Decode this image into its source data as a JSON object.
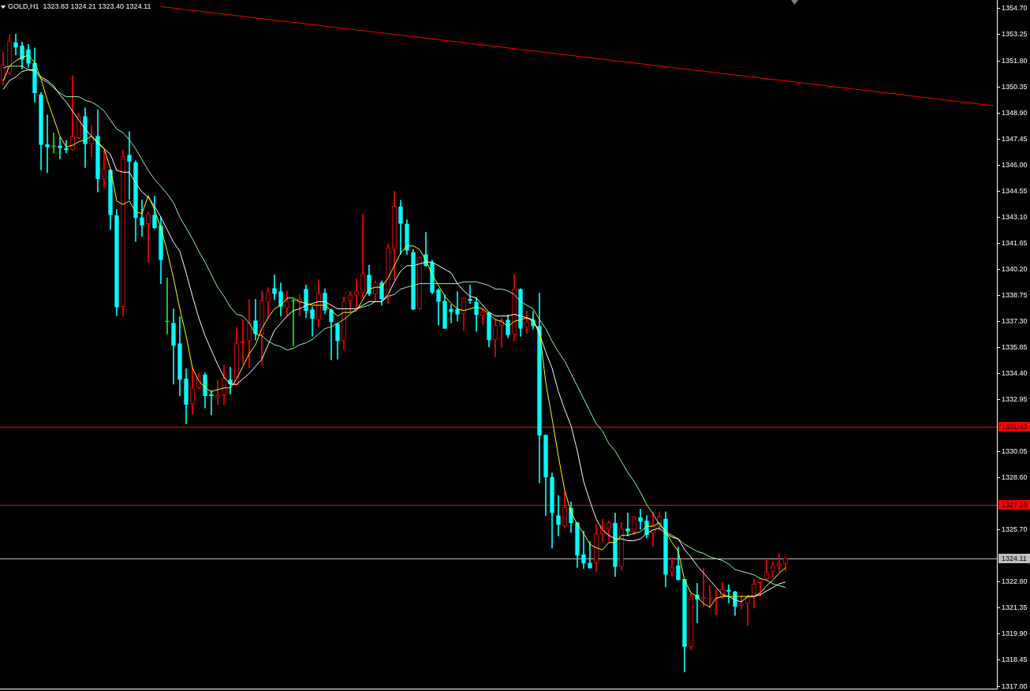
{
  "chart_data": {
    "type": "candlestick",
    "title": "GOLD,H1  1323.83 1324.21 1323.40 1324.11",
    "categories": [
      null,
      null,
      null,
      null,
      null,
      null,
      null,
      null,
      null,
      null,
      null,
      null,
      null,
      null,
      null,
      null,
      null,
      null,
      null,
      null,
      null,
      null,
      null,
      null,
      null,
      null,
      null,
      null,
      null,
      null,
      null,
      null,
      null,
      null,
      null,
      null,
      null,
      null,
      null,
      null,
      null,
      null,
      null,
      null,
      null,
      null,
      null,
      null,
      null,
      null,
      null,
      null,
      null,
      null,
      null,
      null,
      null,
      null,
      null,
      null,
      null,
      null,
      null,
      null,
      null,
      null,
      null,
      null,
      null,
      null,
      null,
      null,
      null,
      null,
      null,
      null,
      null,
      null,
      null,
      null,
      null,
      null,
      null,
      null,
      null,
      null,
      null,
      null,
      null,
      null,
      null,
      null,
      null,
      null,
      null,
      null,
      null,
      null,
      null,
      null,
      null,
      null,
      null,
      null,
      null,
      null,
      null,
      null,
      null,
      null,
      null,
      null,
      null,
      null,
      null,
      null,
      null,
      null,
      null,
      null,
      null,
      null,
      null,
      null,
      null,
      null,
      null,
      null,
      null,
      null,
      null,
      null,
      null,
      null,
      null,
      null,
      null,
      null,
      null,
      null,
      null,
      null,
      null,
      null,
      null,
      null,
      null,
      null,
      null,
      null,
      null,
      null,
      null,
      null,
      null,
      null,
      null,
      null
    ],
    "ohlc": [
      [
        1350.72,
        1352.29,
        1350.46,
        1351.57
      ],
      [
        1351.14,
        1353.26,
        1351.05,
        1352.89
      ],
      [
        1352.82,
        1353.28,
        1352.12,
        1352.55
      ],
      [
        1352.64,
        1352.85,
        1351.34,
        1351.87
      ],
      [
        1352.42,
        1352.71,
        1351.43,
        1351.65
      ],
      [
        1351.68,
        1352.51,
        1349.5,
        1350.0
      ],
      [
        1349.92,
        1350.03,
        1345.73,
        1347.13
      ],
      [
        1347.15,
        1348.78,
        1345.57,
        1347.0
      ],
      [
        1347.04,
        1347.78,
        1346.67,
        1347.04
      ],
      [
        1347.07,
        1347.54,
        1346.34,
        1346.96
      ],
      [
        1346.94,
        1347.37,
        1346.67,
        1346.83
      ],
      [
        1346.84,
        1350.98,
        1346.8,
        1347.6
      ],
      [
        1347.51,
        1348.87,
        1347.45,
        1348.68
      ],
      [
        1348.7,
        1349.18,
        1345.86,
        1347.18
      ],
      [
        1347.18,
        1348.21,
        1346.46,
        1347.59
      ],
      [
        1347.61,
        1349.09,
        1344.5,
        1345.23
      ],
      [
        1345.2,
        1346.85,
        1344.71,
        1345.76
      ],
      [
        1345.72,
        1345.76,
        1342.4,
        1343.22
      ],
      [
        1343.19,
        1343.52,
        1337.62,
        1338.09
      ],
      [
        1338.12,
        1346.83,
        1337.58,
        1346.49
      ],
      [
        1346.55,
        1347.86,
        1344.09,
        1346.2
      ],
      [
        1346.15,
        1346.24,
        1341.74,
        1343.06
      ],
      [
        1343.08,
        1344.05,
        1342.03,
        1342.66
      ],
      [
        1342.72,
        1343.39,
        1340.6,
        1343.25
      ],
      [
        1343.22,
        1344.27,
        1342.45,
        1342.51
      ],
      [
        1342.62,
        1343.1,
        1339.4,
        1340.72
      ],
      [
        1337.28,
        1339.72,
        1336.6,
        1337.28
      ],
      [
        1337.21,
        1338.0,
        1333.81,
        1335.95
      ],
      [
        1336.07,
        1337.56,
        1333.15,
        1334.07
      ],
      [
        1334.1,
        1334.67,
        1331.61,
        1332.67
      ],
      [
        1332.72,
        1334.75,
        1332.14,
        1333.6
      ],
      [
        1333.59,
        1334.43,
        1333.55,
        1334.26
      ],
      [
        1334.32,
        1334.43,
        1332.49,
        1333.15
      ],
      [
        1333.24,
        1333.45,
        1332.1,
        1333.15
      ],
      [
        1333.07,
        1334.02,
        1332.68,
        1333.18
      ],
      [
        1333.21,
        1334.87,
        1332.68,
        1334.14
      ],
      [
        1334.05,
        1334.75,
        1333.26,
        1333.81
      ],
      [
        1333.78,
        1336.98,
        1333.73,
        1336.1
      ],
      [
        1336.1,
        1337.39,
        1334.97,
        1336.19
      ],
      [
        1336.22,
        1338.5,
        1334.7,
        1337.21
      ],
      [
        1337.34,
        1338.53,
        1336.26,
        1336.63
      ],
      [
        1336.58,
        1338.99,
        1334.87,
        1338.46
      ],
      [
        1338.38,
        1339.18,
        1337.5,
        1338.95
      ],
      [
        1339.14,
        1339.88,
        1338.52,
        1338.84
      ],
      [
        1338.96,
        1339.44,
        1337.6,
        1338.14
      ],
      [
        1338.05,
        1338.99,
        1337.62,
        1338.42
      ],
      [
        1338.42,
        1338.52,
        1335.94,
        1338.42
      ],
      [
        1338.35,
        1338.79,
        1337.6,
        1338.55
      ],
      [
        1339.09,
        1339.33,
        1337.5,
        1337.91
      ],
      [
        1337.95,
        1338.11,
        1336.48,
        1337.47
      ],
      [
        1337.4,
        1339.62,
        1336.99,
        1338.86
      ],
      [
        1338.87,
        1339.11,
        1337.72,
        1337.92
      ],
      [
        1337.92,
        1338.01,
        1335.16,
        1337.27
      ],
      [
        1337.16,
        1337.21,
        1335.19,
        1336.21
      ],
      [
        1336.21,
        1338.67,
        1335.75,
        1338.42
      ],
      [
        1338.46,
        1338.96,
        1337.79,
        1338.77
      ],
      [
        1338.76,
        1339.66,
        1338.01,
        1338.99
      ],
      [
        1338.89,
        1343.26,
        1338.6,
        1339.95
      ],
      [
        1339.88,
        1340.42,
        1338.74,
        1338.84
      ],
      [
        1338.81,
        1339.55,
        1338.45,
        1339.44
      ],
      [
        1339.44,
        1339.55,
        1338.19,
        1338.54
      ],
      [
        1338.6,
        1341.62,
        1338.3,
        1341.4
      ],
      [
        1341.31,
        1344.53,
        1339.62,
        1343.72
      ],
      [
        1343.69,
        1344.04,
        1341.03,
        1342.74
      ],
      [
        1342.73,
        1342.95,
        1341.03,
        1341.25
      ],
      [
        1341.15,
        1341.3,
        1337.94,
        1337.97
      ],
      [
        1338.01,
        1340.89,
        1337.97,
        1340.87
      ],
      [
        1341.02,
        1342.25,
        1340.36,
        1340.39
      ],
      [
        1340.55,
        1340.71,
        1338.84,
        1338.92
      ],
      [
        1339.05,
        1339.13,
        1337.09,
        1338.4
      ],
      [
        1338.43,
        1338.78,
        1336.91,
        1336.91
      ],
      [
        1337.99,
        1338.23,
        1337.21,
        1337.83
      ],
      [
        1337.97,
        1338.96,
        1337.31,
        1337.7
      ],
      [
        1337.72,
        1338.62,
        1336.77,
        1338.59
      ],
      [
        1338.55,
        1339.32,
        1338.3,
        1338.45
      ],
      [
        1338.37,
        1338.62,
        1336.74,
        1337.66
      ],
      [
        1337.63,
        1338.01,
        1337.13,
        1337.82
      ],
      [
        1337.78,
        1337.82,
        1335.89,
        1336.26
      ],
      [
        1336.27,
        1337.42,
        1335.34,
        1337.1
      ],
      [
        1337.06,
        1337.47,
        1335.86,
        1337.35
      ],
      [
        1337.38,
        1337.67,
        1336.39,
        1336.56
      ],
      [
        1336.58,
        1339.92,
        1336.21,
        1339.08
      ],
      [
        1339.08,
        1339.13,
        1336.47,
        1336.91
      ],
      [
        1336.97,
        1337.86,
        1336.64,
        1337.28
      ],
      [
        1337.38,
        1337.85,
        1336.87,
        1337.04
      ],
      [
        1337.03,
        1338.87,
        1328.32,
        1330.96
      ],
      [
        1330.98,
        1330.98,
        1326.49,
        1328.65
      ],
      [
        1328.64,
        1328.87,
        1324.68,
        1326.65
      ],
      [
        1326.5,
        1327.62,
        1325.36,
        1325.99
      ],
      [
        1325.91,
        1327.78,
        1325.8,
        1326.97
      ],
      [
        1326.9,
        1327.26,
        1325.55,
        1326.1
      ],
      [
        1326.1,
        1326.12,
        1323.61,
        1324.28
      ],
      [
        1324.34,
        1325.63,
        1323.54,
        1323.84
      ],
      [
        1323.87,
        1325.04,
        1323.56,
        1323.58
      ],
      [
        1323.86,
        1325.98,
        1323.36,
        1325.48
      ],
      [
        1325.48,
        1326.29,
        1325.04,
        1325.83
      ],
      [
        1325.73,
        1326.2,
        1325.07,
        1326.1
      ],
      [
        1326.07,
        1326.64,
        1323.1,
        1323.65
      ],
      [
        1323.67,
        1326.12,
        1323.46,
        1325.79
      ],
      [
        1325.76,
        1326.64,
        1325.36,
        1325.63
      ],
      [
        1325.6,
        1326.46,
        1325.44,
        1326.42
      ],
      [
        1326.39,
        1326.86,
        1325.73,
        1326.17
      ],
      [
        1326.2,
        1326.5,
        1325.25,
        1325.44
      ],
      [
        1325.51,
        1326.68,
        1324.78,
        1325.95
      ],
      [
        1325.91,
        1326.71,
        1325.66,
        1326.42
      ],
      [
        1326.31,
        1326.71,
        1322.52,
        1323.23
      ],
      [
        1323.32,
        1324.17,
        1323.1,
        1323.64
      ],
      [
        1323.7,
        1324.75,
        1322.9,
        1322.93
      ],
      [
        1322.96,
        1322.96,
        1317.8,
        1319.2
      ],
      [
        1319.2,
        1322.22,
        1319.04,
        1322.03
      ],
      [
        1322.08,
        1322.74,
        1320.54,
        1321.83
      ],
      [
        1321.87,
        1323.54,
        1321.45,
        1321.95
      ],
      [
        1321.83,
        1322.62,
        1321.35,
        1321.89
      ],
      [
        1321.89,
        1322.36,
        1320.98,
        1321.93
      ],
      [
        1321.92,
        1322.78,
        1321.89,
        1322.41
      ],
      [
        1322.36,
        1322.66,
        1321.64,
        1322.27
      ],
      [
        1322.25,
        1322.3,
        1320.94,
        1321.44
      ],
      [
        1321.49,
        1322.03,
        1321.3,
        1321.61
      ],
      [
        1321.61,
        1322.08,
        1320.37,
        1321.93
      ],
      [
        1321.95,
        1322.96,
        1321.35,
        1322.69
      ],
      [
        1322.77,
        1323.03,
        1322.01,
        1322.98
      ],
      [
        1322.96,
        1324.01,
        1322.88,
        1323.36
      ],
      [
        1323.39,
        1323.98,
        1323.07,
        1323.73
      ],
      [
        1323.67,
        1324.39,
        1323.35,
        1323.79
      ],
      [
        1323.83,
        1324.21,
        1323.4,
        1324.11
      ],
      null,
      null,
      null,
      null,
      null,
      null,
      null,
      null,
      null,
      null,
      null,
      null,
      null,
      null,
      null,
      null,
      null,
      null,
      null,
      null,
      null,
      null,
      null,
      null,
      null,
      null,
      null,
      null,
      null,
      null,
      null,
      null,
      null
    ],
    "colors": [
      "#ff0000",
      "#ff0000",
      "#00ffff",
      "#00ffff",
      "#00ffff",
      "#00ffff",
      "#00ffff",
      "#00ffff",
      "#00ff00",
      "#00ffff",
      "#00ffff",
      "#ff0000",
      "#ff0000",
      "#00ffff",
      "#ff0000",
      "#00ffff",
      "#ff0000",
      "#00ffff",
      "#00ffff",
      "#ff0000",
      "#00ffff",
      "#00ffff",
      "#00ffff",
      "#ff0000",
      "#00ffff",
      "#00ffff",
      "#00ff00",
      "#00ffff",
      "#00ffff",
      "#00ffff",
      "#ff0000",
      "#ff0000",
      "#00ffff",
      "#00ffff",
      "#ff0000",
      "#ff0000",
      "#00ffff",
      "#ff0000",
      "#ff0000",
      "#ff0000",
      "#00ffff",
      "#ff0000",
      "#ff0000",
      "#00ffff",
      "#00ffff",
      "#ff0000",
      "#00ff00",
      "#ff0000",
      "#00ffff",
      "#00ffff",
      "#ff0000",
      "#00ffff",
      "#00ffff",
      "#00ffff",
      "#ff0000",
      "#ff0000",
      "#ff0000",
      "#ff0000",
      "#00ffff",
      "#ff0000",
      "#00ffff",
      "#ff0000",
      "#ff0000",
      "#00ffff",
      "#00ffff",
      "#00ffff",
      "#ff0000",
      "#00ffff",
      "#00ffff",
      "#00ffff",
      "#00ffff",
      "#00ffff",
      "#00ffff",
      "#ff0000",
      "#00ffff",
      "#00ffff",
      "#ff0000",
      "#00ffff",
      "#ff0000",
      "#ff0000",
      "#00ffff",
      "#ff0000",
      "#00ffff",
      "#ff0000",
      "#00ffff",
      "#00ffff",
      "#00ffff",
      "#00ffff",
      "#00ffff",
      "#ff0000",
      "#00ffff",
      "#00ffff",
      "#00ffff",
      "#00ffff",
      "#ff0000",
      "#ff0000",
      "#ff0000",
      "#00ffff",
      "#ff0000",
      "#00ffff",
      "#ff0000",
      "#00ffff",
      "#00ffff",
      "#ff0000",
      "#ff0000",
      "#00ffff",
      "#ff0000",
      "#00ffff",
      "#00ffff",
      "#ff0000",
      "#00ffff",
      "#ff0000",
      "#ff0000",
      "#ff0000",
      "#ff0000",
      "#00ffff",
      "#00ffff",
      "#ff0000",
      "#ff0000",
      "#ff0000",
      "#ff0000",
      "#ff0000",
      "#ff0000",
      "#ff0000",
      "#ff0000",
      null,
      null,
      null,
      null,
      null,
      null,
      null,
      null,
      null,
      null,
      null,
      null,
      null,
      null,
      null,
      null,
      null,
      null,
      null,
      null,
      null,
      null,
      null,
      null,
      null,
      null,
      null,
      null,
      null,
      null,
      null,
      null,
      null
    ],
    "series": [
      {
        "type": "line",
        "color": "#ffff00",
        "values": [
          1350.7,
          1351.5,
          1351.8,
          1352.0,
          1352.1,
          1351.7,
          1350.8,
          1349.6,
          1348.6,
          1347.6,
          1347.0,
          1347.1,
          1347.3,
          1347.4,
          1347.6,
          1347.3,
          1346.9,
          1345.8,
          1344.0,
          1343.8,
          1344.0,
          1343.4,
          1343.3,
          1344.3,
          1343.5,
          1342.5,
          1341.2,
          1339.7,
          1338.0,
          1336.5,
          1334.7,
          1334.0,
          1333.6,
          1333.4,
          1333.5,
          1333.6,
          1333.6,
          1334.1,
          1334.8,
          1335.5,
          1336.0,
          1336.9,
          1337.5,
          1338.0,
          1338.2,
          1338.6,
          1338.6,
          1338.4,
          1338.3,
          1338.2,
          1338.2,
          1338.2,
          1337.9,
          1337.6,
          1337.8,
          1337.8,
          1337.9,
          1338.5,
          1339.1,
          1339.2,
          1339.2,
          1339.7,
          1340.4,
          1341.1,
          1341.5,
          1341.5,
          1341.3,
          1340.7,
          1339.9,
          1339.3,
          1338.7,
          1338.3,
          1338.0,
          1337.9,
          1338.0,
          1338.1,
          1338.0,
          1337.7,
          1337.4,
          1337.3,
          1337.0,
          1337.3,
          1337.4,
          1337.5,
          1337.3,
          1336.8,
          1333.9,
          1331.9,
          1329.8,
          1327.9,
          1326.7,
          1326.0,
          1325.5,
          1324.9,
          1324.7,
          1324.6,
          1325.0,
          1325.0,
          1325.4,
          1325.4,
          1325.5,
          1325.6,
          1325.9,
          1325.9,
          1326.1,
          1325.6,
          1325.0,
          1324.5,
          1322.9,
          1322.2,
          1322.0,
          1321.6,
          1321.4,
          1321.9,
          1322.0,
          1322.0,
          1322.0,
          1322.0,
          1322.0,
          1322.0,
          1322.2,
          1322.6,
          1322.9,
          1323.3,
          1323.6,
          null,
          null,
          null,
          null,
          null,
          null,
          null,
          null,
          null,
          null,
          null,
          null,
          null,
          null,
          null,
          null,
          null,
          null,
          null,
          null,
          null,
          null,
          null,
          null,
          null,
          null,
          null,
          null,
          null,
          null,
          null,
          null,
          null
        ]
      },
      {
        "type": "line",
        "color": "#ffffff",
        "values": [
          1350.2,
          1350.7,
          1350.9,
          1351.2,
          1351.3,
          1351.3,
          1350.9,
          1350.7,
          1350.4,
          1349.9,
          1349.5,
          1349.0,
          1348.5,
          1348.0,
          1347.6,
          1347.2,
          1346.9,
          1346.6,
          1345.7,
          1345.6,
          1345.6,
          1345.0,
          1344.5,
          1344.2,
          1343.7,
          1343.1,
          1342.4,
          1341.7,
          1341.2,
          1340.0,
          1338.7,
          1337.5,
          1336.5,
          1335.7,
          1334.9,
          1334.2,
          1333.8,
          1333.8,
          1334.1,
          1334.4,
          1334.8,
          1335.2,
          1336.0,
          1336.8,
          1337.2,
          1337.6,
          1337.9,
          1338.0,
          1338.2,
          1338.3,
          1338.4,
          1338.4,
          1338.2,
          1338.0,
          1338.0,
          1338.0,
          1338.0,
          1338.2,
          1338.4,
          1338.4,
          1338.4,
          1338.8,
          1339.5,
          1340.1,
          1340.4,
          1340.4,
          1340.5,
          1340.6,
          1340.6,
          1340.4,
          1340.2,
          1340.0,
          1339.4,
          1339.0,
          1338.7,
          1338.6,
          1338.2,
          1337.8,
          1337.6,
          1337.6,
          1337.6,
          1337.7,
          1337.6,
          1337.5,
          1337.4,
          1336.6,
          1335.6,
          1334.7,
          1333.4,
          1332.4,
          1331.5,
          1330.1,
          1328.4,
          1327.3,
          1326.3,
          1325.7,
          1325.4,
          1325.2,
          1325.2,
          1325.1,
          1325.1,
          1325.2,
          1325.5,
          1325.7,
          1325.8,
          1325.5,
          1325.3,
          1325.2,
          1324.6,
          1324.2,
          1323.7,
          1323.3,
          1322.9,
          1322.5,
          1322.1,
          1322.0,
          1321.8,
          1321.7,
          1322.0,
          1322.0,
          1322.1,
          1322.3,
          1322.5,
          1322.7,
          1322.8,
          null,
          null,
          null,
          null,
          null,
          null,
          null,
          null,
          null,
          null,
          null,
          null,
          null,
          null,
          null,
          null,
          null,
          null,
          null,
          null,
          null,
          null,
          null,
          null,
          null,
          null,
          null,
          null,
          null,
          null,
          null,
          null,
          null
        ]
      },
      {
        "type": "line",
        "color": "#98fb98",
        "values": [
          1351.4,
          1351.5,
          1351.5,
          1351.5,
          1351.3,
          1351.2,
          1350.8,
          1350.6,
          1350.3,
          1350.0,
          1349.8,
          1349.8,
          1349.8,
          1349.6,
          1349.5,
          1349.3,
          1349.0,
          1348.5,
          1348.0,
          1347.8,
          1347.4,
          1346.9,
          1346.3,
          1345.7,
          1345.2,
          1344.8,
          1344.4,
          1343.9,
          1343.1,
          1342.5,
          1341.9,
          1341.2,
          1340.6,
          1339.9,
          1339.2,
          1338.7,
          1338.1,
          1337.7,
          1337.6,
          1337.2,
          1336.6,
          1336.5,
          1336.2,
          1336.0,
          1335.9,
          1335.7,
          1335.8,
          1336.0,
          1336.1,
          1336.3,
          1336.6,
          1336.9,
          1337.0,
          1337.2,
          1337.4,
          1337.7,
          1338.0,
          1338.1,
          1338.2,
          1338.4,
          1338.4,
          1338.7,
          1338.8,
          1339.1,
          1339.2,
          1339.3,
          1339.4,
          1339.4,
          1339.4,
          1339.4,
          1339.4,
          1339.4,
          1339.4,
          1339.5,
          1339.5,
          1339.5,
          1339.4,
          1339.3,
          1339.1,
          1339.1,
          1339.0,
          1338.8,
          1338.4,
          1338.2,
          1338.0,
          1337.4,
          1336.9,
          1336.2,
          1335.6,
          1335.1,
          1334.4,
          1333.7,
          1333.0,
          1332.3,
          1331.6,
          1331.2,
          1330.5,
          1330.1,
          1329.5,
          1328.9,
          1328.4,
          1327.8,
          1327.1,
          1326.6,
          1326.0,
          1325.6,
          1325.4,
          1325.2,
          1324.9,
          1324.7,
          1324.5,
          1324.4,
          1324.2,
          1324.1,
          1324.0,
          1323.8,
          1323.5,
          1323.4,
          1323.3,
          1323.2,
          1323.0,
          1322.9,
          1322.7,
          1322.6,
          1322.5,
          null,
          null,
          null,
          null,
          null,
          null,
          null,
          null,
          null,
          null,
          null,
          null,
          null,
          null,
          null,
          null,
          null,
          null,
          null,
          null,
          null,
          null,
          null,
          null,
          null,
          null,
          null,
          null,
          null,
          null,
          null,
          null,
          null
        ]
      },
      {
        "type": "line",
        "color": "#ff0000",
        "values": [
          null,
          null,
          null,
          null,
          null,
          null,
          null,
          null,
          null,
          null,
          null,
          null,
          null,
          null,
          null,
          null,
          null,
          null,
          null,
          null,
          null,
          null,
          null,
          null,
          null,
          1354.81,
          1354.77,
          1354.73,
          1354.68,
          1354.64,
          1354.6,
          1354.56,
          1354.52,
          1354.48,
          1354.43,
          1354.39,
          1354.35,
          1354.31,
          1354.27,
          1354.23,
          1354.18,
          1354.14,
          1354.1,
          1354.06,
          1354.02,
          1353.98,
          1353.93,
          1353.89,
          1353.85,
          1353.81,
          1353.77,
          1353.72,
          1353.68,
          1353.64,
          1353.6,
          1353.56,
          1353.52,
          1353.47,
          1353.43,
          1353.39,
          1353.35,
          1353.31,
          1353.27,
          1353.22,
          1353.18,
          1353.14,
          1353.1,
          1353.06,
          1353.01,
          1352.97,
          1352.93,
          1352.89,
          1352.85,
          1352.81,
          1352.76,
          1352.72,
          1352.68,
          1352.64,
          1352.6,
          1352.56,
          1352.51,
          1352.47,
          1352.43,
          1352.39,
          1352.35,
          1352.31,
          1352.26,
          1352.22,
          1352.18,
          1352.14,
          1352.1,
          1352.05,
          1352.01,
          1351.97,
          1351.93,
          1351.89,
          1351.85,
          1351.8,
          1351.76,
          1351.72,
          1351.68,
          1351.64,
          1351.6,
          1351.55,
          1351.51,
          1351.47,
          1351.43,
          1351.39,
          1351.34,
          1351.3,
          1351.26,
          1351.22,
          1351.18,
          1351.14,
          1351.09,
          1351.05,
          1351.01,
          1350.97,
          1350.93,
          1350.89,
          1350.84,
          1350.8,
          1350.76,
          1350.72,
          1350.68,
          1350.64,
          1350.59,
          1350.55,
          1350.51,
          1350.47,
          1350.43,
          1350.38,
          1350.34,
          1350.3,
          1350.26,
          1350.22,
          1350.18,
          1350.13,
          1350.09,
          1350.05,
          1350.01,
          1349.97,
          1349.93,
          1349.88,
          1349.84,
          1349.8,
          1349.76,
          1349.72,
          1349.67,
          1349.63,
          1349.59,
          1349.55,
          1349.51,
          1349.47,
          1349.42,
          1349.38,
          1349.34,
          1349.3
        ]
      }
    ],
    "ylim": [
      1316.87,
      1355.18
    ],
    "yticks": [
      {
        "value": 1354.7,
        "label": "1354.70"
      },
      {
        "value": 1353.25,
        "label": "1353.25"
      },
      {
        "value": 1351.8,
        "label": "1351.80"
      },
      {
        "value": 1350.35,
        "label": "1350.35"
      },
      {
        "value": 1348.9,
        "label": "1348.90"
      },
      {
        "value": 1347.45,
        "label": "1347.45"
      },
      {
        "value": 1346,
        "label": "1346.00"
      },
      {
        "value": 1344.55,
        "label": "1344.55"
      },
      {
        "value": 1343.1,
        "label": "1343.10"
      },
      {
        "value": 1341.65,
        "label": "1341.65"
      },
      {
        "value": 1340.2,
        "label": "1340.20"
      },
      {
        "value": 1338.75,
        "label": "1338.75"
      },
      {
        "value": 1337.3,
        "label": "1337.30"
      },
      {
        "value": 1335.85,
        "label": "1335.85"
      },
      {
        "value": 1334.4,
        "label": "1334.40"
      },
      {
        "value": 1332.95,
        "label": "1332.95"
      },
      {
        "value": 1330.05,
        "label": "1330.05"
      },
      {
        "value": 1328.6,
        "label": "1328.60"
      },
      {
        "value": 1325.7,
        "label": "1325.70"
      },
      {
        "value": 1322.8,
        "label": "1322.80"
      },
      {
        "value": 1321.35,
        "label": "1321.35"
      },
      {
        "value": 1319.9,
        "label": "1319.90"
      },
      {
        "value": 1318.45,
        "label": "1318.45"
      },
      {
        "value": 1317,
        "label": "1317.00"
      }
    ],
    "ref_lines": [
      {
        "axis": "y",
        "value": 1331.43,
        "label": "1331.43",
        "color": "#ff0000"
      },
      {
        "axis": "y",
        "value": 1327.1,
        "label": "1327.10",
        "color": "#ff0000"
      },
      {
        "axis": "y",
        "value": 1324.11,
        "label": "1324.11",
        "color": "#c0c0c0"
      }
    ],
    "tick_labels": "y"
  }
}
